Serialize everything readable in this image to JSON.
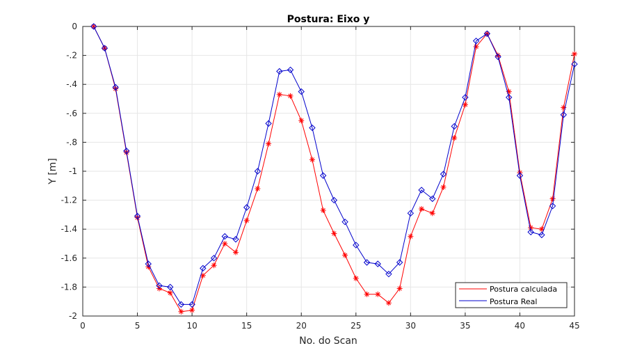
{
  "chart_data": {
    "type": "line",
    "title": "Postura: Eixo y",
    "xlabel": "No. do Scan",
    "ylabel": "Y [m]",
    "xlim": [
      0,
      45
    ],
    "ylim": [
      -2,
      0
    ],
    "xticks": [
      0,
      5,
      10,
      15,
      20,
      25,
      30,
      35,
      40,
      45
    ],
    "yticks": [
      0,
      -0.2,
      -0.4,
      -0.6,
      -0.8,
      -1,
      -1.2,
      -1.4,
      -1.6,
      -1.8,
      -2
    ],
    "grid": true,
    "legend_position": "bottom-right",
    "x": [
      1,
      2,
      3,
      4,
      5,
      6,
      7,
      8,
      9,
      10,
      11,
      12,
      13,
      14,
      15,
      16,
      17,
      18,
      19,
      20,
      21,
      22,
      23,
      24,
      25,
      26,
      27,
      28,
      29,
      30,
      31,
      32,
      33,
      34,
      35,
      36,
      37,
      38,
      39,
      40,
      41,
      42,
      43,
      44,
      45
    ],
    "series": [
      {
        "name": "Postura calculada",
        "color": "#ff0000",
        "marker": "asterisk",
        "values": [
          0,
          -0.15,
          -0.43,
          -0.87,
          -1.32,
          -1.66,
          -1.81,
          -1.84,
          -1.97,
          -1.96,
          -1.72,
          -1.65,
          -1.5,
          -1.56,
          -1.34,
          -1.12,
          -0.81,
          -0.47,
          -0.48,
          -0.65,
          -0.92,
          -1.27,
          -1.43,
          -1.58,
          -1.74,
          -1.85,
          -1.85,
          -1.91,
          -1.81,
          -1.45,
          -1.26,
          -1.29,
          -1.11,
          -0.77,
          -0.54,
          -0.14,
          -0.05,
          -0.2,
          -0.45,
          -1.01,
          -1.39,
          -1.4,
          -1.19,
          -0.56,
          -0.19
        ]
      },
      {
        "name": "Postura Real",
        "color": "#0000cc",
        "marker": "diamond",
        "values": [
          0,
          -0.15,
          -0.42,
          -0.86,
          -1.31,
          -1.64,
          -1.79,
          -1.8,
          -1.92,
          -1.92,
          -1.67,
          -1.6,
          -1.45,
          -1.47,
          -1.25,
          -1.0,
          -0.67,
          -0.31,
          -0.3,
          -0.45,
          -0.7,
          -1.03,
          -1.2,
          -1.35,
          -1.51,
          -1.63,
          -1.64,
          -1.71,
          -1.63,
          -1.29,
          -1.13,
          -1.19,
          -1.02,
          -0.69,
          -0.49,
          -0.1,
          -0.05,
          -0.21,
          -0.49,
          -1.03,
          -1.42,
          -1.44,
          -1.24,
          -0.61,
          -0.26
        ]
      }
    ]
  }
}
